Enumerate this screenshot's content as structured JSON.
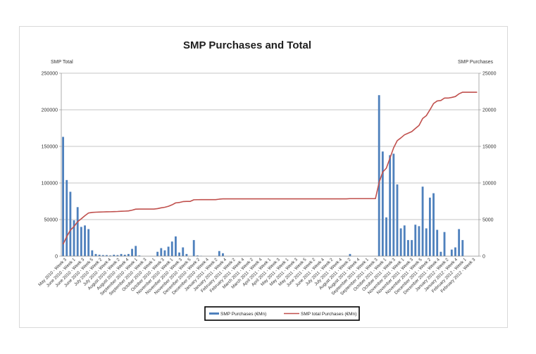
{
  "chart_data": {
    "type": "bar+line",
    "title": "SMP Purchases and Total",
    "left_axis_label": "SMP Total",
    "right_axis_label": "SMP Purchases",
    "left_ylim": [
      0,
      250000
    ],
    "right_ylim": [
      0,
      25000
    ],
    "left_ticks": [
      "0",
      "50000",
      "100000",
      "150000",
      "200000",
      "250000"
    ],
    "right_ticks": [
      "0",
      "5000",
      "10000",
      "15000",
      "20000",
      "25000"
    ],
    "grid": "horizontal",
    "legend_position": "bottom",
    "x_tick_labels": [
      "May 2010 - Week 3",
      "June 2010 - Week 1",
      "June 2010 - Week 3",
      "June 2010 - Week 5",
      "July 2010 - Week 2",
      "July 2010 - Week 4",
      "August 2010 - Week 2",
      "August 2010 - Week 4",
      "September 2010 - Week 1",
      "September 2010 - Week 3",
      "October 2010 - Week 1",
      "October 2010 - Week 3",
      "November 2010 - Week 1",
      "November 2010 - Week 3",
      "November 2010 - Week 5",
      "December 2010 - Week 2",
      "December 2010 - Week 4",
      "January 2011 - Week 2",
      "January 2011 - Week 4",
      "February 2011 - Week 2",
      "February 2011 - Week 4",
      "March 2011 - Week 2",
      "March 2011 - Week 4",
      "April 2011 - Week 1",
      "April 2011 - Week 3",
      "May 2011 - Week 1",
      "May 2011 - Week 3",
      "May 2011 - Week 5",
      "June 2011 - Week 2",
      "June 2011 - Week 4",
      "July 2011 - Week 2",
      "July 2011 - Week 4",
      "August 2011 - Week 2",
      "August 2011 - Week 4",
      "September 2011 - Week 1",
      "September 2011 - Week 3",
      "October 2011 - Week 1",
      "October 2011 - Week 3",
      "November 2011 - Week 1",
      "November 2011 - Week 3",
      "November 2011 - Week 5",
      "December 2011 - Week 2",
      "December 2011 - Week 4",
      "January 2012 - Week 2",
      "January 2012 - Week 4",
      "February 2012 - Week 1",
      "February 2012 - Week 3"
    ],
    "series": [
      {
        "name": "SMP Purchases (€Mn)",
        "type": "bar",
        "axis": "right",
        "color": "#4f81bd",
        "values": [
          16300,
          10400,
          8800,
          4900,
          6700,
          4000,
          4200,
          3700,
          800,
          300,
          200,
          150,
          150,
          100,
          200,
          150,
          300,
          200,
          300,
          1000,
          1400,
          100,
          0,
          0,
          0,
          0,
          600,
          1100,
          800,
          1300,
          2000,
          2700,
          500,
          1200,
          300,
          0,
          2200,
          100,
          50,
          0,
          0,
          0,
          0,
          700,
          400,
          0,
          0,
          0,
          0,
          0,
          0,
          0,
          0,
          0,
          0,
          0,
          0,
          0,
          0,
          0,
          0,
          0,
          0,
          0,
          0,
          0,
          0,
          0,
          0,
          0,
          0,
          0,
          0,
          0,
          0,
          0,
          0,
          0,
          0,
          300,
          0,
          0,
          0,
          0,
          0,
          0,
          0,
          22000,
          14300,
          5300,
          13800,
          14000,
          9800,
          3800,
          4200,
          2200,
          2200,
          4300,
          4100,
          9500,
          3800,
          8000,
          8600,
          3600,
          600,
          3300,
          0,
          900,
          1200,
          3700,
          2200,
          0,
          0,
          0,
          0
        ]
      },
      {
        "name": "SMP total Purchases (€Mn)",
        "type": "line",
        "axis": "left",
        "color": "#c0504d",
        "values": [
          16300,
          26700,
          35500,
          40400,
          47100,
          51100,
          55300,
          59000,
          59800,
          60100,
          60300,
          60450,
          60600,
          60700,
          60900,
          61050,
          61350,
          61550,
          61850,
          62850,
          64250,
          64350,
          64350,
          64350,
          64350,
          64350,
          64950,
          66050,
          66850,
          68150,
          70150,
          72850,
          73350,
          74550,
          74850,
          74850,
          77050,
          77150,
          77200,
          77200,
          77200,
          77200,
          77200,
          77900,
          78300,
          78300,
          78300,
          78300,
          78300,
          78300,
          78300,
          78300,
          78300,
          78300,
          78300,
          78300,
          78300,
          78300,
          78300,
          78300,
          78300,
          78300,
          78300,
          78300,
          78300,
          78300,
          78300,
          78300,
          78300,
          78300,
          78300,
          78300,
          78300,
          78300,
          78300,
          78300,
          78300,
          78300,
          78300,
          78600,
          78600,
          78600,
          78600,
          78600,
          78600,
          78600,
          78600,
          100600,
          114900,
          120200,
          134000,
          148000,
          157800,
          161600,
          165800,
          168000,
          170200,
          174500,
          178600,
          188100,
          191900,
          199900,
          208500,
          212100,
          212700,
          216000,
          216000,
          216900,
          218100,
          221800,
          224000,
          224000,
          224000,
          224000,
          224000
        ]
      }
    ]
  }
}
